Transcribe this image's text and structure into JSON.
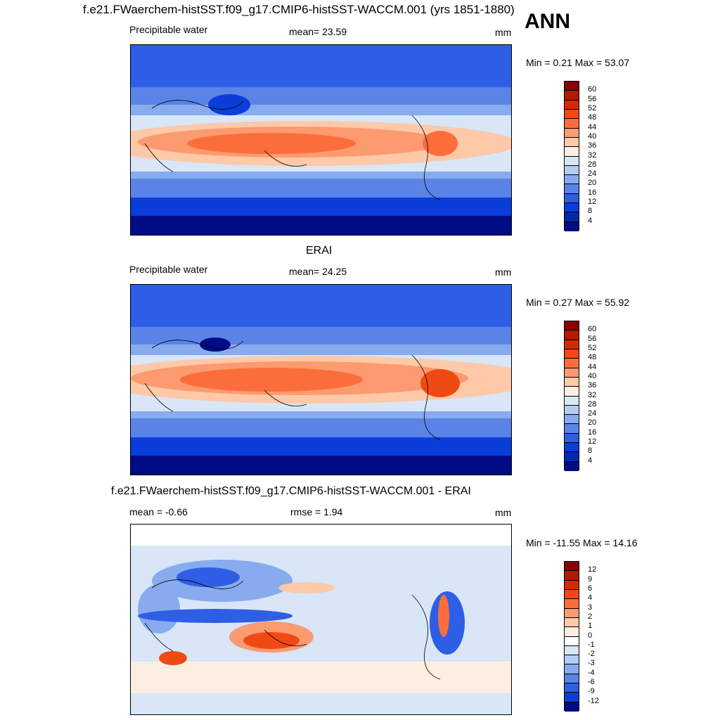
{
  "title": "f.e21.FWaerchem-histSST.f09_g17.CMIP6-histSST-WACCM.001 (yrs 1851-1880)",
  "season": "ANN",
  "panels": [
    {
      "variable": "Precipitable water",
      "stat": "mean=  23.59",
      "units": "mm",
      "minmax": "Min =   0.21 Max =  53.07",
      "colorbar": {
        "labels": [
          "60",
          "56",
          "52",
          "48",
          "44",
          "40",
          "36",
          "32",
          "28",
          "24",
          "20",
          "16",
          "12",
          "8",
          "4"
        ],
        "colors": [
          "#8b0000",
          "#b31a00",
          "#d42a00",
          "#f04a14",
          "#fb6e3c",
          "#fc9a70",
          "#fdc9a8",
          "#fdeee2",
          "#d8e6f8",
          "#b3ccf3",
          "#87abee",
          "#5a83e8",
          "#2f5ee6",
          "#0a3dd9",
          "#002aa6",
          "#000b86"
        ]
      }
    },
    {
      "heading": "ERAI",
      "variable": "Precipitable water",
      "stat": "mean=  24.25",
      "units": "mm",
      "minmax": "Min =   0.27 Max =  55.92",
      "colorbar": {
        "labels": [
          "60",
          "56",
          "52",
          "48",
          "44",
          "40",
          "36",
          "32",
          "28",
          "24",
          "20",
          "16",
          "12",
          "8",
          "4"
        ],
        "colors": [
          "#8b0000",
          "#b31a00",
          "#d42a00",
          "#f04a14",
          "#fb6e3c",
          "#fc9a70",
          "#fdc9a8",
          "#fdeee2",
          "#d8e6f8",
          "#b3ccf3",
          "#87abee",
          "#5a83e8",
          "#2f5ee6",
          "#0a3dd9",
          "#002aa6",
          "#000b86"
        ]
      }
    },
    {
      "heading": "f.e21.FWaerchem-histSST.f09_g17.CMIP6-histSST-WACCM.001 - ERAI",
      "stat": "mean =  -0.66",
      "stat2": "rmse =    1.94",
      "units": "mm",
      "minmax": "Min = -11.55 Max =  14.16",
      "colorbar": {
        "labels": [
          "12",
          "9",
          "6",
          "4",
          "3",
          "2",
          "1",
          "0",
          "-1",
          "-2",
          "-3",
          "-4",
          "-6",
          "-9",
          "-12"
        ],
        "colors": [
          "#8b0000",
          "#b31a00",
          "#d42a00",
          "#f04a14",
          "#fb6e3c",
          "#fc9a70",
          "#fdc9a8",
          "#fdeee2",
          "#ffffff",
          "#d8e6f8",
          "#b3ccf3",
          "#87abee",
          "#5a83e8",
          "#2f5ee6",
          "#0a3dd9",
          "#000b86"
        ]
      }
    }
  ],
  "map_colors": {
    "deep_blue": "#000b86",
    "blue": "#0a3dd9",
    "mid_blue": "#2f5ee6",
    "light_blue": "#87abee",
    "pale_blue": "#d8e6f8",
    "pale_orange": "#fdeee2",
    "orange": "#fc9a70",
    "red_orange": "#f04a14"
  }
}
